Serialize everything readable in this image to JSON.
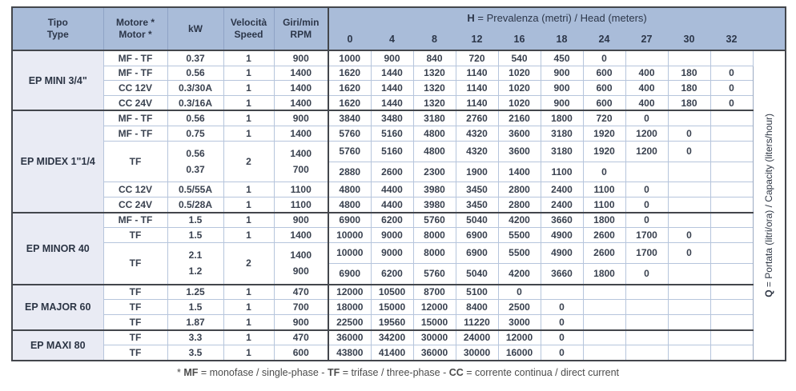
{
  "table": {
    "left_headers": [
      {
        "line1": "Tipo",
        "line2": "Type"
      },
      {
        "line1": "Motore *",
        "line2": "Motor *"
      },
      {
        "line1": "kW",
        "line2": ""
      },
      {
        "line1": "Velocità",
        "line2": "Speed"
      },
      {
        "line1": "Giri/min",
        "line2": "RPM"
      }
    ],
    "head_title_segments": [
      {
        "text": "H",
        "bold": true
      },
      {
        "text": " = Prevalenza (metri) / Head (meters)",
        "bold": false
      }
    ],
    "head_values": [
      "0",
      "4",
      "8",
      "12",
      "16",
      "18",
      "24",
      "27",
      "30",
      "32"
    ],
    "q_label_segments": [
      {
        "text": "Q",
        "bold": true
      },
      {
        "text": " = Portata (litri/ora) / Capacity (liters/hour)",
        "bold": false
      }
    ],
    "sections": [
      {
        "name": "EP MINI 3/4\"",
        "rows": [
          {
            "type": "single",
            "motor": "MF - TF",
            "kw": "0.37",
            "speed": "1",
            "rpm": "900",
            "q": [
              "1000",
              "900",
              "840",
              "720",
              "540",
              "450",
              "0",
              "",
              "",
              ""
            ]
          },
          {
            "type": "single",
            "motor": "MF - TF",
            "kw": "0.56",
            "speed": "1",
            "rpm": "1400",
            "q": [
              "1620",
              "1440",
              "1320",
              "1140",
              "1020",
              "900",
              "600",
              "400",
              "180",
              "0"
            ]
          },
          {
            "type": "single",
            "motor": "CC 12V",
            "kw": "0.3/30A",
            "speed": "1",
            "rpm": "1400",
            "q": [
              "1620",
              "1440",
              "1320",
              "1140",
              "1020",
              "900",
              "600",
              "400",
              "180",
              "0"
            ]
          },
          {
            "type": "single",
            "motor": "CC 24V",
            "kw": "0.3/16A",
            "speed": "1",
            "rpm": "1400",
            "q": [
              "1620",
              "1440",
              "1320",
              "1140",
              "1020",
              "900",
              "600",
              "400",
              "180",
              "0"
            ]
          }
        ]
      },
      {
        "name": "EP MIDEX 1\"1/4",
        "rows": [
          {
            "type": "single",
            "motor": "MF - TF",
            "kw": "0.56",
            "speed": "1",
            "rpm": "900",
            "q": [
              "3840",
              "3480",
              "3180",
              "2760",
              "2160",
              "1800",
              "720",
              "0",
              "",
              ""
            ]
          },
          {
            "type": "single",
            "motor": "MF - TF",
            "kw": "0.75",
            "speed": "1",
            "rpm": "1400",
            "q": [
              "5760",
              "5160",
              "4800",
              "4320",
              "3600",
              "3180",
              "1920",
              "1200",
              "0",
              ""
            ]
          },
          {
            "type": "double",
            "motor": "TF",
            "speed": "2",
            "kw": [
              "0.56",
              "0.37"
            ],
            "rpm": [
              "1400",
              "700"
            ],
            "q": [
              [
                "5760",
                "5160",
                "4800",
                "4320",
                "3600",
                "3180",
                "1920",
                "1200",
                "0",
                ""
              ],
              [
                "2880",
                "2600",
                "2300",
                "1900",
                "1400",
                "1100",
                "0",
                "",
                "",
                ""
              ]
            ]
          },
          {
            "type": "single",
            "motor": "CC 12V",
            "kw": "0.5/55A",
            "speed": "1",
            "rpm": "1100",
            "q": [
              "4800",
              "4400",
              "3980",
              "3450",
              "2800",
              "2400",
              "1100",
              "0",
              "",
              ""
            ]
          },
          {
            "type": "single",
            "motor": "CC 24V",
            "kw": "0.5/28A",
            "speed": "1",
            "rpm": "1100",
            "q": [
              "4800",
              "4400",
              "3980",
              "3450",
              "2800",
              "2400",
              "1100",
              "0",
              "",
              ""
            ]
          }
        ]
      },
      {
        "name": "EP MINOR 40",
        "rows": [
          {
            "type": "single",
            "motor": "MF - TF",
            "kw": "1.5",
            "speed": "1",
            "rpm": "900",
            "q": [
              "6900",
              "6200",
              "5760",
              "5040",
              "4200",
              "3660",
              "1800",
              "0",
              "",
              ""
            ]
          },
          {
            "type": "single",
            "motor": "TF",
            "kw": "1.5",
            "speed": "1",
            "rpm": "1400",
            "q": [
              "10000",
              "9000",
              "8000",
              "6900",
              "5500",
              "4900",
              "2600",
              "1700",
              "0",
              ""
            ]
          },
          {
            "type": "double",
            "motor": "TF",
            "speed": "2",
            "kw": [
              "2.1",
              "1.2"
            ],
            "rpm": [
              "1400",
              "900"
            ],
            "q": [
              [
                "10000",
                "9000",
                "8000",
                "6900",
                "5500",
                "4900",
                "2600",
                "1700",
                "0",
                ""
              ],
              [
                "6900",
                "6200",
                "5760",
                "5040",
                "4200",
                "3660",
                "1800",
                "0",
                "",
                ""
              ]
            ]
          }
        ]
      },
      {
        "name": "EP MAJOR 60",
        "rows": [
          {
            "type": "single",
            "motor": "TF",
            "kw": "1.25",
            "speed": "1",
            "rpm": "470",
            "q": [
              "12000",
              "10500",
              "8700",
              "5100",
              "0",
              "",
              "",
              "",
              "",
              ""
            ]
          },
          {
            "type": "single",
            "motor": "TF",
            "kw": "1.5",
            "speed": "1",
            "rpm": "700",
            "q": [
              "18000",
              "15000",
              "12000",
              "8400",
              "2500",
              "0",
              "",
              "",
              "",
              ""
            ]
          },
          {
            "type": "single",
            "motor": "TF",
            "kw": "1.87",
            "speed": "1",
            "rpm": "900",
            "q": [
              "22500",
              "19560",
              "15000",
              "11220",
              "3000",
              "0",
              "",
              "",
              "",
              ""
            ]
          }
        ]
      },
      {
        "name": "EP MAXI 80",
        "rows": [
          {
            "type": "single",
            "motor": "TF",
            "kw": "3.3",
            "speed": "1",
            "rpm": "470",
            "q": [
              "36000",
              "34200",
              "30000",
              "24000",
              "12000",
              "0",
              "",
              "",
              "",
              ""
            ]
          },
          {
            "type": "single",
            "motor": "TF",
            "kw": "3.5",
            "speed": "1",
            "rpm": "600",
            "q": [
              "43800",
              "41400",
              "36000",
              "30000",
              "16000",
              "0",
              "",
              "",
              "",
              ""
            ]
          }
        ]
      }
    ]
  },
  "footnote_segments": [
    {
      "text": "* ",
      "bold": false
    },
    {
      "text": "MF",
      "bold": true
    },
    {
      "text": " = monofase / single-phase - ",
      "bold": false
    },
    {
      "text": "TF",
      "bold": true
    },
    {
      "text": " = trifase / three-phase - ",
      "bold": false
    },
    {
      "text": "CC",
      "bold": true
    },
    {
      "text": " = corrente continua / direct current",
      "bold": false
    }
  ]
}
